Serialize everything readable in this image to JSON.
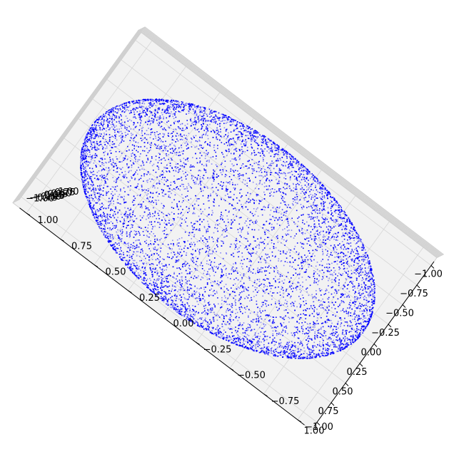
{
  "chart_data": {
    "type": "scatter",
    "projection": "3d",
    "shape": "unit sphere surface (uniformly sampled points)",
    "title": "",
    "xlabel": "",
    "ylabel": "",
    "zlabel": "",
    "xlim": [
      -1.0,
      1.0
    ],
    "ylim": [
      -1.0,
      1.0
    ],
    "zlim": [
      -1.0,
      1.0
    ],
    "grid": true,
    "legend": "none",
    "point_count": 10000,
    "marker_color": "#0000ff",
    "axis": {
      "x": {
        "ticks": [
          -1.0,
          -0.75,
          -0.5,
          -0.25,
          0.0,
          0.25,
          0.5,
          0.75,
          1.0
        ],
        "labels": [
          "−1.00",
          "−0.75",
          "−0.50",
          "−0.25",
          "0.00",
          "0.25",
          "0.50",
          "0.75",
          "1.00"
        ]
      },
      "y": {
        "ticks": [
          -1.0,
          -0.75,
          -0.5,
          -0.25,
          0.0,
          0.25,
          0.5,
          0.75,
          1.0
        ],
        "labels": [
          "−1.00",
          "−0.75",
          "−0.50",
          "−0.25",
          "0.00",
          "0.25",
          "0.50",
          "0.75",
          "1.00"
        ]
      },
      "z": {
        "ticks": [
          -1.0,
          -0.75,
          -0.5,
          -0.25,
          0.0,
          0.25,
          0.5,
          0.75,
          1.0
        ],
        "labels": [
          "−1.00",
          "−0.75",
          "−0.50",
          "−0.25",
          "0.00",
          "0.25",
          "0.50",
          "0.75",
          "1.00"
        ]
      }
    }
  }
}
